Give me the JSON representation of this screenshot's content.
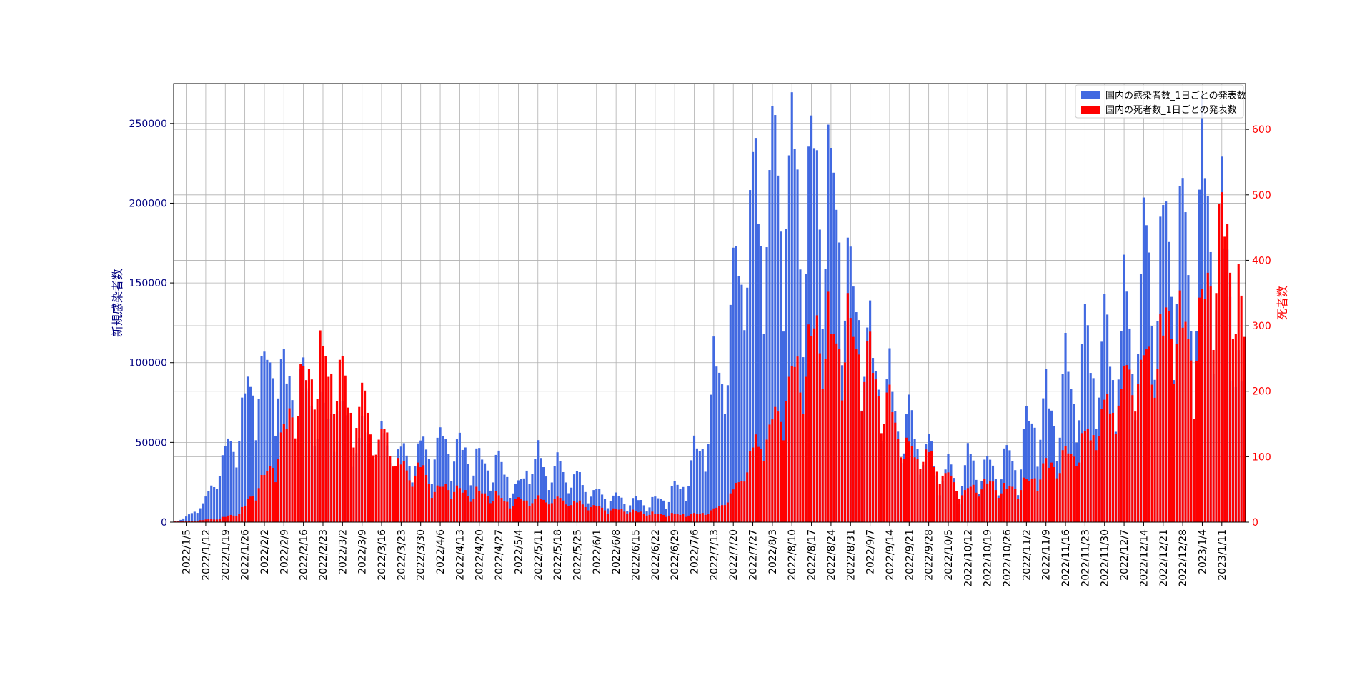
{
  "chart_data": {
    "type": "bar",
    "x_start": "2022-01-01",
    "x_end": "2023-01-19",
    "x_tick_labels": [
      "2022/1/5",
      "2022/1/12",
      "2022/1/19",
      "2022/1/26",
      "2022/2/2",
      "2022/2/9",
      "2022/2/16",
      "2022/2/23",
      "2022/3/2",
      "2022/3/9",
      "2022/3/16",
      "2022/3/23",
      "2022/3/30",
      "2022/4/6",
      "2022/4/13",
      "2022/4/20",
      "2022/4/27",
      "2022/5/4",
      "2022/5/11",
      "2022/5/18",
      "2022/5/25",
      "2022/6/1",
      "2022/6/8",
      "2022/6/15",
      "2022/6/22",
      "2022/6/29",
      "2022/7/6",
      "2022/7/13",
      "2022/7/20",
      "2022/7/27",
      "2022/8/3",
      "2022/8/10",
      "2022/8/17",
      "2022/8/24",
      "2022/8/31",
      "2022/9/7",
      "2022/9/14",
      "2022/9/21",
      "2022/9/28",
      "2022/10/5",
      "2022/10/12",
      "2022/10/19",
      "2022/10/26",
      "2022/11/2",
      "2022/11/9",
      "2022/11/16",
      "2022/11/23",
      "2022/11/30",
      "2022/12/7",
      "2022/12/14",
      "2022/12/21",
      "2022/12/28",
      "2023/1/4",
      "2023/1/11"
    ],
    "y_left": {
      "label": "新規感染者数",
      "ylim": [
        0,
        275000
      ],
      "ticks": [
        0,
        50000,
        100000,
        150000,
        200000,
        250000
      ],
      "color": "#000080"
    },
    "y_right": {
      "label": "死者数",
      "ylim": [
        0,
        670
      ],
      "ticks": [
        0,
        100,
        200,
        300,
        400,
        500,
        600
      ],
      "color": "#ff0000"
    },
    "grid": true,
    "legend_position": "top-right",
    "series": [
      {
        "name": "国内の感染者数_1日ごとの発表数",
        "axis": "left",
        "color": "#4169e1",
        "anchors": [
          [
            "2022-01-01",
            500
          ],
          [
            "2022-01-05",
            3000
          ],
          [
            "2022-01-09",
            9000
          ],
          [
            "2022-01-12",
            14000
          ],
          [
            "2022-01-15",
            27000
          ],
          [
            "2022-01-19",
            45000
          ],
          [
            "2022-01-23",
            55000
          ],
          [
            "2022-01-26",
            80000
          ],
          [
            "2022-01-30",
            90000
          ],
          [
            "2022-02-02",
            100000
          ],
          [
            "2022-02-06",
            96000
          ],
          [
            "2022-02-09",
            95000
          ],
          [
            "2022-02-13",
            80000
          ],
          [
            "2022-02-16",
            90000
          ],
          [
            "2022-02-20",
            75000
          ],
          [
            "2022-02-23",
            72000
          ],
          [
            "2022-02-27",
            70000
          ],
          [
            "2022-03-02",
            65000
          ],
          [
            "2022-03-06",
            55000
          ],
          [
            "2022-03-09",
            55000
          ],
          [
            "2022-03-13",
            48000
          ],
          [
            "2022-03-16",
            55000
          ],
          [
            "2022-03-20",
            42000
          ],
          [
            "2022-03-23",
            45000
          ],
          [
            "2022-03-27",
            40000
          ],
          [
            "2022-03-30",
            50000
          ],
          [
            "2022-04-03",
            42000
          ],
          [
            "2022-04-06",
            55000
          ],
          [
            "2022-04-10",
            45000
          ],
          [
            "2022-04-13",
            50000
          ],
          [
            "2022-04-17",
            38000
          ],
          [
            "2022-04-20",
            42000
          ],
          [
            "2022-04-24",
            32000
          ],
          [
            "2022-04-27",
            40000
          ],
          [
            "2022-05-01",
            25000
          ],
          [
            "2022-05-04",
            22000
          ],
          [
            "2022-05-08",
            38000
          ],
          [
            "2022-05-11",
            42000
          ],
          [
            "2022-05-15",
            30000
          ],
          [
            "2022-05-18",
            38000
          ],
          [
            "2022-05-22",
            27000
          ],
          [
            "2022-05-25",
            30000
          ],
          [
            "2022-05-29",
            19000
          ],
          [
            "2022-06-01",
            20000
          ],
          [
            "2022-06-05",
            15000
          ],
          [
            "2022-06-08",
            17000
          ],
          [
            "2022-06-12",
            12000
          ],
          [
            "2022-06-15",
            15000
          ],
          [
            "2022-06-19",
            11000
          ],
          [
            "2022-06-22",
            15000
          ],
          [
            "2022-06-26",
            14000
          ],
          [
            "2022-06-29",
            23000
          ],
          [
            "2022-07-03",
            22000
          ],
          [
            "2022-07-06",
            45000
          ],
          [
            "2022-07-10",
            50000
          ],
          [
            "2022-07-13",
            95000
          ],
          [
            "2022-07-17",
            100000
          ],
          [
            "2022-07-20",
            150000
          ],
          [
            "2022-07-24",
            180000
          ],
          [
            "2022-07-27",
            215000
          ],
          [
            "2022-07-31",
            190000
          ],
          [
            "2022-08-03",
            240000
          ],
          [
            "2022-08-07",
            200000
          ],
          [
            "2022-08-10",
            245000
          ],
          [
            "2022-08-14",
            170000
          ],
          [
            "2022-08-17",
            240000
          ],
          [
            "2022-08-21",
            200000
          ],
          [
            "2022-08-24",
            225000
          ],
          [
            "2022-08-28",
            170000
          ],
          [
            "2022-08-31",
            155000
          ],
          [
            "2022-09-04",
            120000
          ],
          [
            "2022-09-07",
            115000
          ],
          [
            "2022-09-11",
            80000
          ],
          [
            "2022-09-14",
            90000
          ],
          [
            "2022-09-18",
            55000
          ],
          [
            "2022-09-21",
            70000
          ],
          [
            "2022-09-25",
            45000
          ],
          [
            "2022-09-28",
            50000
          ],
          [
            "2022-10-02",
            27000
          ],
          [
            "2022-10-05",
            38000
          ],
          [
            "2022-10-09",
            18000
          ],
          [
            "2022-10-12",
            45000
          ],
          [
            "2022-10-16",
            28000
          ],
          [
            "2022-10-19",
            40000
          ],
          [
            "2022-10-23",
            28000
          ],
          [
            "2022-10-26",
            47000
          ],
          [
            "2022-10-30",
            30000
          ],
          [
            "2022-11-02",
            65000
          ],
          [
            "2022-11-06",
            60000
          ],
          [
            "2022-11-09",
            80000
          ],
          [
            "2022-11-13",
            60000
          ],
          [
            "2022-11-16",
            100000
          ],
          [
            "2022-11-20",
            75000
          ],
          [
            "2022-11-23",
            120000
          ],
          [
            "2022-11-27",
            90000
          ],
          [
            "2022-11-30",
            125000
          ],
          [
            "2022-12-04",
            90000
          ],
          [
            "2022-12-07",
            145000
          ],
          [
            "2022-12-11",
            100000
          ],
          [
            "2022-12-14",
            185000
          ],
          [
            "2022-12-18",
            140000
          ],
          [
            "2022-12-21",
            195000
          ],
          [
            "2022-12-25",
            150000
          ],
          [
            "2022-12-28",
            210000
          ],
          [
            "2023-01-01",
            100000
          ],
          [
            "2023-01-04",
            240000
          ],
          [
            "2023-01-08",
            160000
          ],
          [
            "2023-01-11",
            195000
          ],
          [
            "2023-01-15",
            140000
          ],
          [
            "2023-01-19",
            55000
          ]
        ]
      },
      {
        "name": "国内の死者数_1日ごとの発表数",
        "axis": "right",
        "color": "#ff0000",
        "anchors": [
          [
            "2022-01-01",
            1
          ],
          [
            "2022-01-10",
            3
          ],
          [
            "2022-01-17",
            6
          ],
          [
            "2022-01-24",
            14
          ],
          [
            "2022-01-28",
            38
          ],
          [
            "2022-02-02",
            70
          ],
          [
            "2022-02-06",
            95
          ],
          [
            "2022-02-10",
            150
          ],
          [
            "2022-02-14",
            200
          ],
          [
            "2022-02-18",
            230
          ],
          [
            "2022-02-22",
            250
          ],
          [
            "2022-02-26",
            235
          ],
          [
            "2022-03-02",
            225
          ],
          [
            "2022-03-06",
            160
          ],
          [
            "2022-03-10",
            190
          ],
          [
            "2022-03-14",
            120
          ],
          [
            "2022-03-18",
            135
          ],
          [
            "2022-03-22",
            90
          ],
          [
            "2022-03-26",
            75
          ],
          [
            "2022-03-30",
            85
          ],
          [
            "2022-04-04",
            50
          ],
          [
            "2022-04-09",
            55
          ],
          [
            "2022-04-15",
            45
          ],
          [
            "2022-04-20",
            45
          ],
          [
            "2022-04-26",
            40
          ],
          [
            "2022-05-01",
            30
          ],
          [
            "2022-05-06",
            35
          ],
          [
            "2022-05-12",
            35
          ],
          [
            "2022-05-18",
            35
          ],
          [
            "2022-05-24",
            30
          ],
          [
            "2022-05-30",
            25
          ],
          [
            "2022-06-05",
            20
          ],
          [
            "2022-06-11",
            18
          ],
          [
            "2022-06-17",
            15
          ],
          [
            "2022-06-23",
            12
          ],
          [
            "2022-06-29",
            12
          ],
          [
            "2022-07-06",
            12
          ],
          [
            "2022-07-13",
            18
          ],
          [
            "2022-07-20",
            45
          ],
          [
            "2022-07-27",
            110
          ],
          [
            "2022-08-03",
            150
          ],
          [
            "2022-08-07",
            185
          ],
          [
            "2022-08-10",
            225
          ],
          [
            "2022-08-14",
            240
          ],
          [
            "2022-08-18",
            290
          ],
          [
            "2022-08-22",
            300
          ],
          [
            "2022-08-26",
            270
          ],
          [
            "2022-08-30",
            300
          ],
          [
            "2022-09-03",
            260
          ],
          [
            "2022-09-07",
            250
          ],
          [
            "2022-09-11",
            190
          ],
          [
            "2022-09-14",
            180
          ],
          [
            "2022-09-18",
            130
          ],
          [
            "2022-09-22",
            105
          ],
          [
            "2022-09-26",
            110
          ],
          [
            "2022-09-30",
            90
          ],
          [
            "2022-10-05",
            70
          ],
          [
            "2022-10-10",
            45
          ],
          [
            "2022-10-15",
            55
          ],
          [
            "2022-10-20",
            60
          ],
          [
            "2022-10-25",
            50
          ],
          [
            "2022-10-30",
            55
          ],
          [
            "2022-11-04",
            65
          ],
          [
            "2022-11-09",
            85
          ],
          [
            "2022-11-14",
            95
          ],
          [
            "2022-11-19",
            110
          ],
          [
            "2022-11-24",
            130
          ],
          [
            "2022-11-29",
            165
          ],
          [
            "2022-12-04",
            190
          ],
          [
            "2022-12-09",
            230
          ],
          [
            "2022-12-14",
            240
          ],
          [
            "2022-12-19",
            270
          ],
          [
            "2022-12-24",
            320
          ],
          [
            "2022-12-28",
            300
          ],
          [
            "2023-01-01",
            250
          ],
          [
            "2023-01-04",
            330
          ],
          [
            "2023-01-08",
            400
          ],
          [
            "2023-01-12",
            460
          ],
          [
            "2023-01-16",
            370
          ],
          [
            "2023-01-19",
            280
          ]
        ]
      }
    ]
  }
}
